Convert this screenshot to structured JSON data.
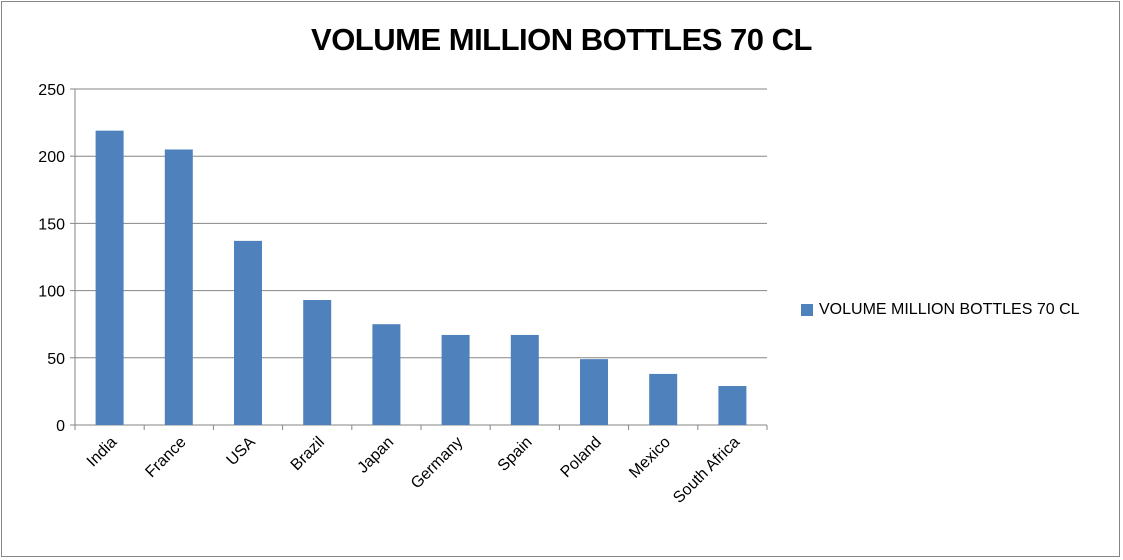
{
  "chart_data": {
    "type": "bar",
    "title": "VOLUME MILLION BOTTLES 70 CL",
    "xlabel": "",
    "ylabel": "",
    "categories": [
      "India",
      "France",
      "USA",
      "Brazil",
      "Japan",
      "Germany",
      "Spain",
      "Poland",
      "Mexico",
      "South Africa"
    ],
    "series": [
      {
        "name": "VOLUME MILLION BOTTLES 70 CL",
        "values": [
          219,
          205,
          137,
          93,
          75,
          67,
          67,
          49,
          38,
          29
        ],
        "color": "#4f81bd"
      }
    ],
    "ylim": [
      0,
      250
    ],
    "yticks": [
      0,
      50,
      100,
      150,
      200,
      250
    ],
    "grid": true,
    "legend_position": "right"
  }
}
